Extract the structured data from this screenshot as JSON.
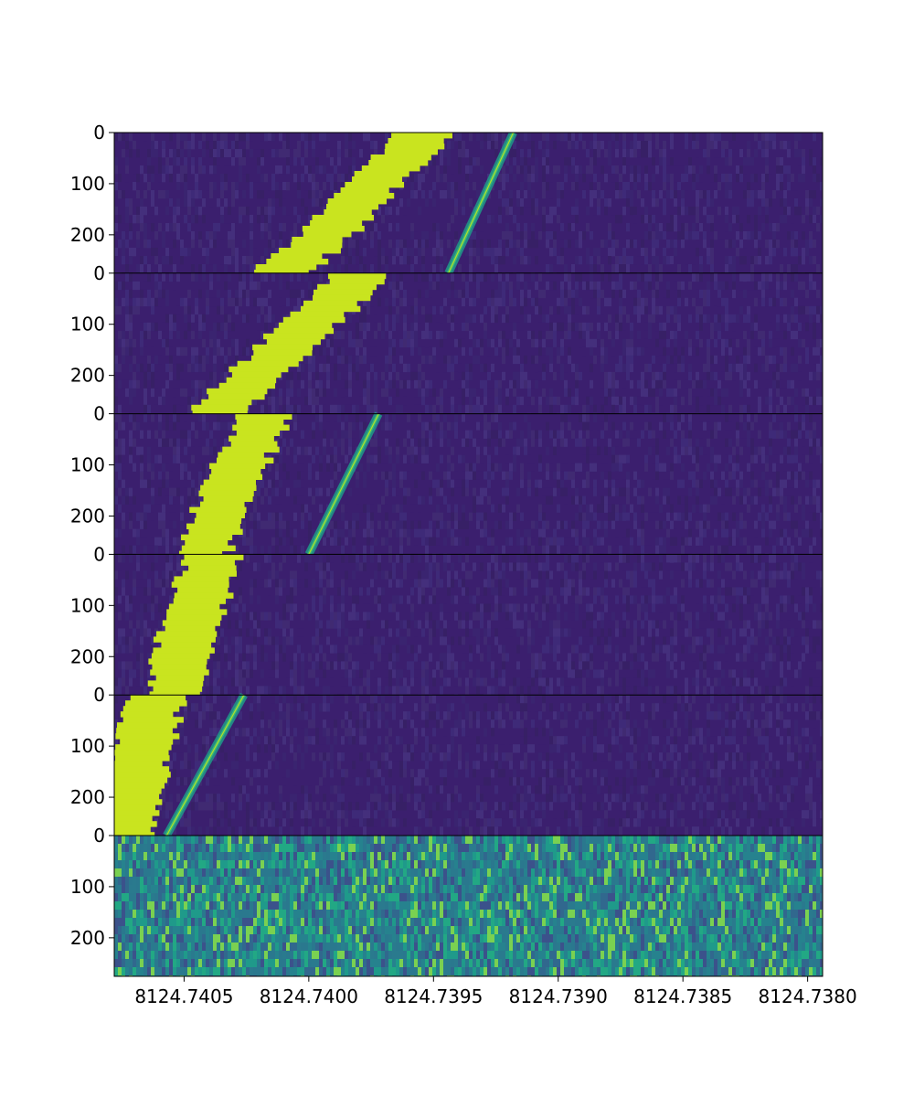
{
  "chart_data": {
    "type": "heatmap",
    "title": "",
    "xlabel": "",
    "ylabel": "",
    "x_reversed": true,
    "xlim": [
      8124.74078,
      8124.73794
    ],
    "ylim_per_panel": [
      0,
      275
    ],
    "grid": false,
    "legend": "none",
    "colormap": "viridis",
    "x_ticks": [
      {
        "value": 8124.7405,
        "label": "8124.7405"
      },
      {
        "value": 8124.74,
        "label": "8124.7400"
      },
      {
        "value": 8124.7395,
        "label": "8124.7395"
      },
      {
        "value": 8124.739,
        "label": "8124.7390"
      },
      {
        "value": 8124.7385,
        "label": "8124.7385"
      },
      {
        "value": 8124.738,
        "label": "8124.7380"
      }
    ],
    "y_ticks": [
      {
        "value": 0,
        "label": "0"
      },
      {
        "value": 100,
        "label": "100"
      },
      {
        "value": 200,
        "label": "200"
      }
    ],
    "panels": [
      {
        "name": "panel-1",
        "background": "noise-low",
        "band": {
          "x_start": 8124.73953,
          "y_start": 0,
          "x_end": 8124.7401,
          "y_end": 275,
          "half_width": 0.00011
        },
        "line": {
          "x_start": 8124.73918,
          "y_start": 0,
          "x_end": 8124.73944,
          "y_end": 275
        }
      },
      {
        "name": "panel-2",
        "background": "noise-low",
        "band": {
          "x_start": 8124.73979,
          "y_start": 0,
          "x_end": 8124.74037,
          "y_end": 275,
          "half_width": 0.00011
        },
        "line": null
      },
      {
        "name": "panel-3",
        "background": "noise-low",
        "band": {
          "x_start": 8124.74019,
          "y_start": 0,
          "x_end": 8124.74042,
          "y_end": 275,
          "half_width": 0.0001
        },
        "line": {
          "x_start": 8124.73972,
          "y_start": 0,
          "x_end": 8124.74,
          "y_end": 275
        }
      },
      {
        "name": "panel-4",
        "background": "noise-low",
        "band": {
          "x_start": 8124.74039,
          "y_start": 0,
          "x_end": 8124.74055,
          "y_end": 275,
          "half_width": 0.00011
        },
        "line": null
      },
      {
        "name": "panel-5",
        "background": "noise-low",
        "band": {
          "x_start": 8124.74062,
          "y_start": 0,
          "x_end": 8124.74075,
          "y_end": 275,
          "half_width": 0.00012
        },
        "line": {
          "x_start": 8124.74026,
          "y_start": 0,
          "x_end": 8124.74057,
          "y_end": 275
        }
      },
      {
        "name": "panel-6",
        "background": "noise-high",
        "band": null,
        "line": null
      }
    ],
    "colors": {
      "background_low": "#3b1f6e",
      "background_high": "#2a7a8e",
      "band": "#c9e41f",
      "line": "#35b779",
      "separator": "#000000"
    }
  }
}
